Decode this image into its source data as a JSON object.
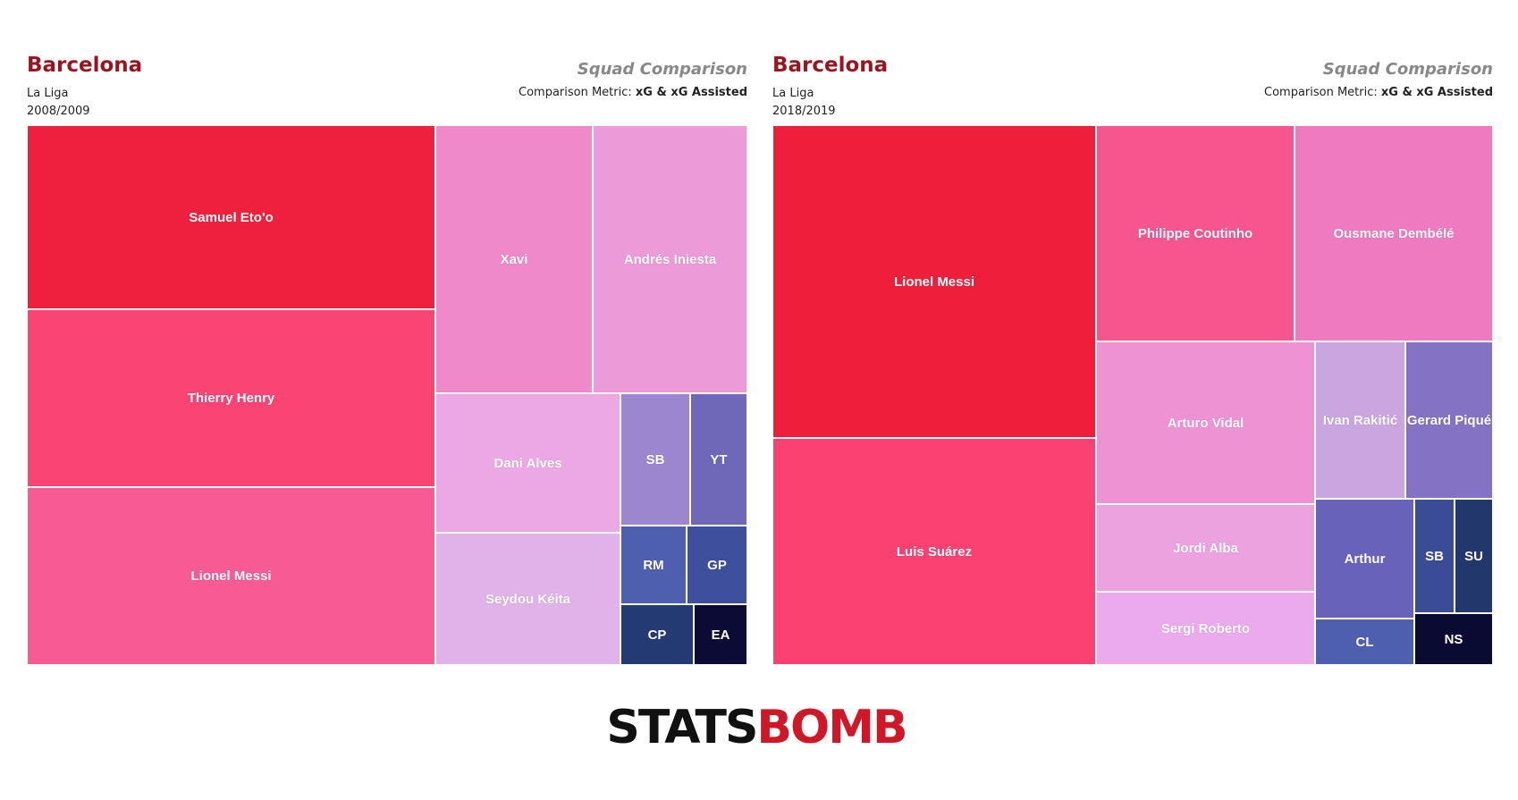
{
  "logo": {
    "part1": "STATS",
    "part2": "BOMB"
  },
  "panels": [
    {
      "team": "Barcelona",
      "league": "La Liga",
      "season": "2008/2009",
      "subtitle": "Squad Comparison",
      "metric_label": "Comparison Metric: ",
      "metric_value": "xG & xG Assisted"
    },
    {
      "team": "Barcelona",
      "league": "La Liga",
      "season": "2018/2019",
      "subtitle": "Squad Comparison",
      "metric_label": "Comparison Metric: ",
      "metric_value": "xG & xG Assisted"
    }
  ],
  "chart_data": [
    {
      "type": "treemap",
      "metric": "xG & xG Assisted",
      "items": [
        {
          "label": "Samuel Eto'o",
          "value": 22.3,
          "color": "#ef203e"
        },
        {
          "label": "Thierry Henry",
          "value": 21.6,
          "color": "#fa4574"
        },
        {
          "label": "Lionel Messi",
          "value": 21.6,
          "color": "#f85a93"
        },
        {
          "label": "Xavi",
          "value": 12.2,
          "color": "#ef89ca"
        },
        {
          "label": "Andrés Iniesta",
          "value": 12.2,
          "color": "#ed9ad9"
        },
        {
          "label": "Dani Alves",
          "value": 7.6,
          "color": "#eca8e5"
        },
        {
          "label": "Seydou Kéita",
          "value": 7.4,
          "color": "#e1b2ea"
        },
        {
          "label": "SB",
          "value": 2.1,
          "color": "#9b86d0"
        },
        {
          "label": "YT",
          "value": 1.8,
          "color": "#6f68b9"
        },
        {
          "label": "RM",
          "value": 1.6,
          "color": "#4f5fb0"
        },
        {
          "label": "GP",
          "value": 1.5,
          "color": "#3e4f9e"
        },
        {
          "label": "CP",
          "value": 1.3,
          "color": "#243a72"
        },
        {
          "label": "EA",
          "value": 1.3,
          "color": "#0b0b35"
        }
      ]
    },
    {
      "type": "treemap",
      "metric": "xG & xG Assisted",
      "items": [
        {
          "label": "Lionel Messi",
          "value": 31.9,
          "color": "#ef1f3c"
        },
        {
          "label": "Luis Suárez",
          "value": 23.4,
          "color": "#fb4172"
        },
        {
          "label": "Philippe Coutinho",
          "value": 13.7,
          "color": "#f6558d"
        },
        {
          "label": "Ousmane Dembélé",
          "value": 14.0,
          "color": "#f07ac0"
        },
        {
          "label": "Arturo Vidal",
          "value": 11.2,
          "color": "#ee92d4"
        },
        {
          "label": "Jordi Alba",
          "value": 6.0,
          "color": "#eda2e0"
        },
        {
          "label": "Sergi Roberto",
          "value": 5.1,
          "color": "#eaaaeb"
        },
        {
          "label": "Ivan Rakitić",
          "value": 4.5,
          "color": "#caa6e1"
        },
        {
          "label": "Gerard Piqué",
          "value": 4.3,
          "color": "#8473c4"
        },
        {
          "label": "Arthur",
          "value": 3.7,
          "color": "#6962bb"
        },
        {
          "label": "CL",
          "value": 1.5,
          "color": "#4f5fb0"
        },
        {
          "label": "SB",
          "value": 1.5,
          "color": "#3b4c96"
        },
        {
          "label": "SU",
          "value": 1.4,
          "color": "#22376b"
        },
        {
          "label": "NS",
          "value": 1.6,
          "color": "#0a0b33"
        }
      ]
    }
  ]
}
